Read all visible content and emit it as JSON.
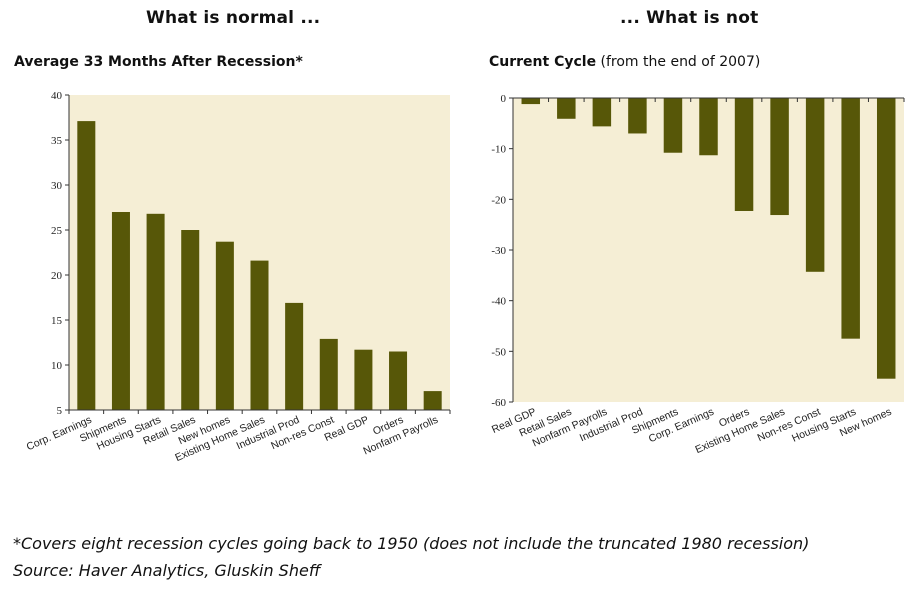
{
  "headings": {
    "left": "What is normal ...",
    "right": "... What is not"
  },
  "chart_data": [
    {
      "type": "bar",
      "title": "Average 33 Months After Recession*",
      "categories": [
        "Corp. Earnings",
        "Shipments",
        "Housing Starts",
        "Retail Sales",
        "New homes",
        "Existing Home Sales",
        "Industrial Prod",
        "Non-res Const",
        "Real GDP",
        "Orders",
        "Nonfarm Payrolls"
      ],
      "values": [
        37.1,
        27.0,
        26.8,
        25.0,
        23.7,
        21.6,
        16.9,
        12.9,
        11.7,
        11.5,
        7.1
      ],
      "ylim": [
        5,
        40
      ],
      "yticks": [
        40,
        35,
        30,
        25,
        20,
        15,
        10,
        5
      ],
      "xlabel": "",
      "ylabel": "",
      "plot_bg": "#f5eed5",
      "bar_color": "#575708",
      "grid": false
    },
    {
      "type": "bar",
      "title": "Current Cycle",
      "subtitle": "(from the end of 2007)",
      "categories": [
        "Real GDP",
        "Retail Sales",
        "Nonfarm Payrolls",
        "Industrial Prod",
        "Shipments",
        "Corp. Earnings",
        "Orders",
        "Existing Home Sales",
        "Non-res Const",
        "Housing Starts",
        "New homes"
      ],
      "values": [
        -1.2,
        -4.1,
        -5.6,
        -7.0,
        -10.8,
        -11.3,
        -22.3,
        -23.1,
        -34.3,
        -47.5,
        -55.4
      ],
      "ylim": [
        -60,
        0
      ],
      "yticks": [
        0,
        -10,
        -20,
        -30,
        -40,
        -50,
        -60
      ],
      "xlabel": "",
      "ylabel": "",
      "plot_bg": "#f5eed5",
      "bar_color": "#575708",
      "grid": false
    }
  ],
  "footnotes": {
    "note": "*Covers eight recession cycles going back to 1950 (does not include the truncated 1980 recession)",
    "source": "Source: Haver Analytics, Gluskin Sheff"
  }
}
